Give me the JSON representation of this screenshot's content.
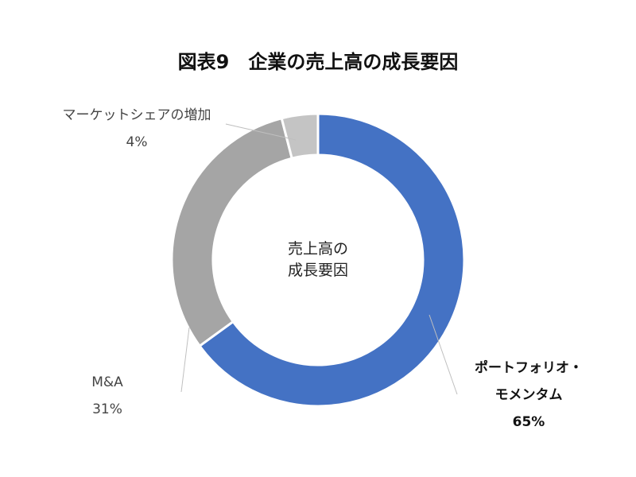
{
  "chart_data": {
    "type": "pie",
    "variant": "donut",
    "title": "図表9　企業の売上高の成長要因",
    "center_label": [
      "売上高の",
      "成長要因"
    ],
    "categories": [
      "ポートフォリオ・モメンタム",
      "M&A",
      "マーケットシェアの増加"
    ],
    "values": [
      65,
      31,
      4
    ],
    "unit": "%",
    "data_labels": [
      {
        "name_lines": [
          "ポートフォリオ・",
          "モメンタム"
        ],
        "value_text": "65%"
      },
      {
        "name_lines": [
          "M&A"
        ],
        "value_text": "31%"
      },
      {
        "name_lines": [
          "マーケットシェアの増加"
        ],
        "value_text": "4%"
      }
    ],
    "colors": [
      "#4472c4",
      "#a5a5a5",
      "#c4c4c4"
    ],
    "start_angle_deg": 0,
    "direction": "clockwise",
    "legend": "none"
  }
}
